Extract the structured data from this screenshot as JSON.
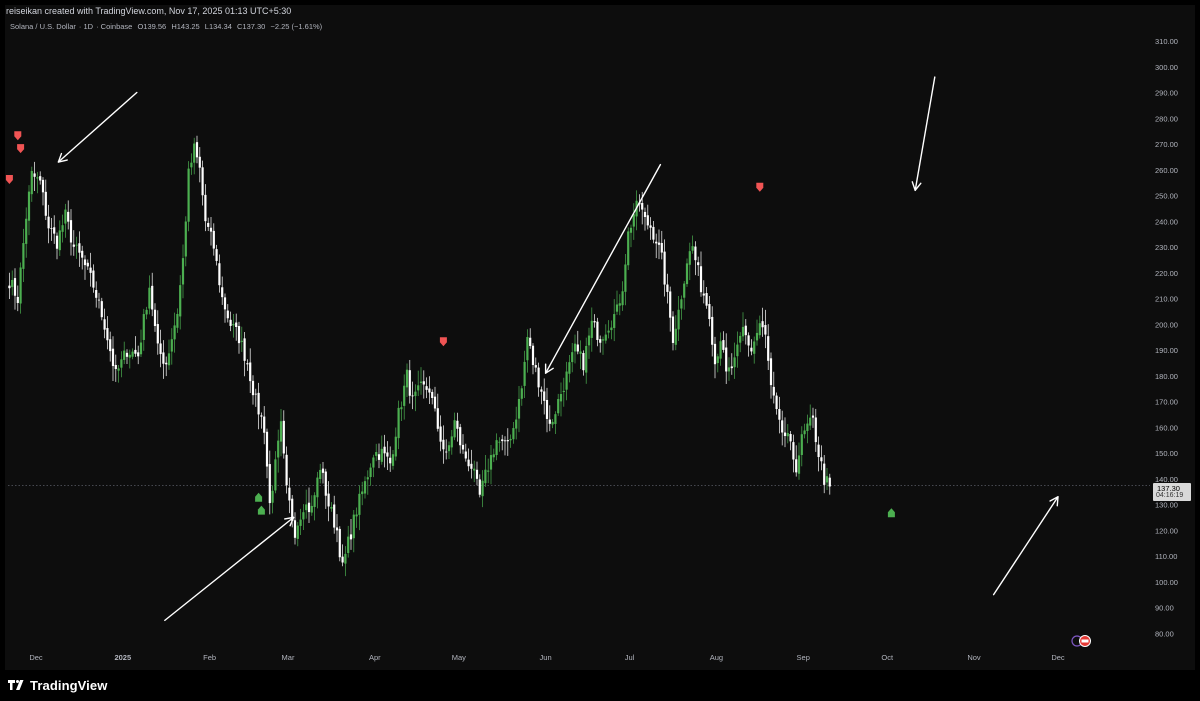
{
  "header": {
    "attribution": "reiseikan created with TradingView.com, Nov 17, 2025 01:13 UTC+5:30"
  },
  "symbol": {
    "name": "Solana / U.S. Dollar",
    "interval": "1D",
    "exchange": "Coinbase",
    "open": "O139.56",
    "high": "H143.25",
    "low": "L134.34",
    "close": "C137.30",
    "change": "−2.25 (−1.61%)"
  },
  "last_price": {
    "price": "137.30",
    "countdown": "04:16:19"
  },
  "footer": {
    "brand": "TradingView"
  },
  "colors": {
    "up": "#4caf50",
    "down": "#ffffff",
    "sell_marker": "#f05454",
    "buy_marker": "#4caf50",
    "background": "#0d0d0d",
    "axis_text": "#b2b5be"
  },
  "chart_data": {
    "type": "candlestick",
    "y_axis": {
      "min": 80,
      "max": 310,
      "ticks": [
        "310.00",
        "300.00",
        "290.00",
        "280.00",
        "270.00",
        "260.00",
        "250.00",
        "240.00",
        "230.00",
        "220.00",
        "210.00",
        "200.00",
        "190.00",
        "180.00",
        "170.00",
        "160.00",
        "150.00",
        "140.00",
        "130.00",
        "120.00",
        "110.00",
        "100.00",
        "90.00",
        "80.00"
      ]
    },
    "x_axis": {
      "ticks": [
        {
          "label": "Dec",
          "day": 10
        },
        {
          "label": "2025",
          "day": 41
        },
        {
          "label": "Feb",
          "day": 72
        },
        {
          "label": "Mar",
          "day": 100
        },
        {
          "label": "Apr",
          "day": 131
        },
        {
          "label": "May",
          "day": 161
        },
        {
          "label": "Jun",
          "day": 192
        },
        {
          "label": "Jul",
          "day": 222
        },
        {
          "label": "Aug",
          "day": 253
        },
        {
          "label": "Sep",
          "day": 284
        },
        {
          "label": "Oct",
          "day": 314
        },
        {
          "label": "Nov",
          "day": 345
        },
        {
          "label": "Dec",
          "day": 375
        }
      ]
    },
    "anchors": [
      {
        "d": 0,
        "p": 217
      },
      {
        "d": 3,
        "p": 210
      },
      {
        "d": 6,
        "p": 242
      },
      {
        "d": 8,
        "p": 258
      },
      {
        "d": 11,
        "p": 255
      },
      {
        "d": 14,
        "p": 238
      },
      {
        "d": 17,
        "p": 232
      },
      {
        "d": 20,
        "p": 242
      },
      {
        "d": 23,
        "p": 230
      },
      {
        "d": 26,
        "p": 225
      },
      {
        "d": 30,
        "p": 215
      },
      {
        "d": 34,
        "p": 200
      },
      {
        "d": 38,
        "p": 180
      },
      {
        "d": 42,
        "p": 190
      },
      {
        "d": 46,
        "p": 188
      },
      {
        "d": 50,
        "p": 215
      },
      {
        "d": 53,
        "p": 190
      },
      {
        "d": 56,
        "p": 185
      },
      {
        "d": 60,
        "p": 205
      },
      {
        "d": 62,
        "p": 225
      },
      {
        "d": 64,
        "p": 258
      },
      {
        "d": 66,
        "p": 268
      },
      {
        "d": 68,
        "p": 260
      },
      {
        "d": 70,
        "p": 240
      },
      {
        "d": 73,
        "p": 230
      },
      {
        "d": 76,
        "p": 210
      },
      {
        "d": 79,
        "p": 200
      },
      {
        "d": 82,
        "p": 195
      },
      {
        "d": 85,
        "p": 185
      },
      {
        "d": 88,
        "p": 170
      },
      {
        "d": 91,
        "p": 160
      },
      {
        "d": 93,
        "p": 130
      },
      {
        "d": 95,
        "p": 145
      },
      {
        "d": 97,
        "p": 160
      },
      {
        "d": 99,
        "p": 135
      },
      {
        "d": 102,
        "p": 120
      },
      {
        "d": 105,
        "p": 130
      },
      {
        "d": 108,
        "p": 128
      },
      {
        "d": 111,
        "p": 145
      },
      {
        "d": 114,
        "p": 130
      },
      {
        "d": 117,
        "p": 120
      },
      {
        "d": 119,
        "p": 105
      },
      {
        "d": 121,
        "p": 115
      },
      {
        "d": 124,
        "p": 128
      },
      {
        "d": 127,
        "p": 138
      },
      {
        "d": 130,
        "p": 150
      },
      {
        "d": 133,
        "p": 150
      },
      {
        "d": 136,
        "p": 146
      },
      {
        "d": 139,
        "p": 165
      },
      {
        "d": 142,
        "p": 180
      },
      {
        "d": 144,
        "p": 170
      },
      {
        "d": 147,
        "p": 175
      },
      {
        "d": 150,
        "p": 175
      },
      {
        "d": 153,
        "p": 160
      },
      {
        "d": 156,
        "p": 148
      },
      {
        "d": 159,
        "p": 162
      },
      {
        "d": 162,
        "p": 150
      },
      {
        "d": 165,
        "p": 145
      },
      {
        "d": 168,
        "p": 133
      },
      {
        "d": 171,
        "p": 145
      },
      {
        "d": 174,
        "p": 155
      },
      {
        "d": 177,
        "p": 152
      },
      {
        "d": 180,
        "p": 160
      },
      {
        "d": 183,
        "p": 175
      },
      {
        "d": 185,
        "p": 195
      },
      {
        "d": 187,
        "p": 185
      },
      {
        "d": 190,
        "p": 175
      },
      {
        "d": 193,
        "p": 160
      },
      {
        "d": 196,
        "p": 170
      },
      {
        "d": 199,
        "p": 180
      },
      {
        "d": 202,
        "p": 190
      },
      {
        "d": 205,
        "p": 185
      },
      {
        "d": 208,
        "p": 200
      },
      {
        "d": 211,
        "p": 195
      },
      {
        "d": 214,
        "p": 200
      },
      {
        "d": 217,
        "p": 205
      },
      {
        "d": 219,
        "p": 215
      },
      {
        "d": 221,
        "p": 235
      },
      {
        "d": 223,
        "p": 243
      },
      {
        "d": 225,
        "p": 247
      },
      {
        "d": 227,
        "p": 240
      },
      {
        "d": 229,
        "p": 238
      },
      {
        "d": 231,
        "p": 233
      },
      {
        "d": 233,
        "p": 225
      },
      {
        "d": 235,
        "p": 210
      },
      {
        "d": 237,
        "p": 195
      },
      {
        "d": 239,
        "p": 205
      },
      {
        "d": 242,
        "p": 225
      },
      {
        "d": 244,
        "p": 230
      },
      {
        "d": 247,
        "p": 215
      },
      {
        "d": 250,
        "p": 205
      },
      {
        "d": 252,
        "p": 185
      },
      {
        "d": 254,
        "p": 195
      },
      {
        "d": 256,
        "p": 180
      },
      {
        "d": 259,
        "p": 185
      },
      {
        "d": 262,
        "p": 198
      },
      {
        "d": 265,
        "p": 190
      },
      {
        "d": 268,
        "p": 200
      },
      {
        "d": 270,
        "p": 195
      },
      {
        "d": 272,
        "p": 175
      },
      {
        "d": 275,
        "p": 160
      },
      {
        "d": 278,
        "p": 155
      },
      {
        "d": 281,
        "p": 145
      },
      {
        "d": 283,
        "p": 155
      },
      {
        "d": 285,
        "p": 160
      },
      {
        "d": 287,
        "p": 162
      },
      {
        "d": 289,
        "p": 150
      },
      {
        "d": 291,
        "p": 140
      },
      {
        "d": 293,
        "p": 137
      }
    ],
    "price_markers": [
      {
        "type": "sell",
        "day": 0,
        "price": 256
      },
      {
        "type": "sell",
        "day": 3,
        "price": 273
      },
      {
        "type": "sell",
        "day": 4,
        "price": 268
      },
      {
        "type": "buy",
        "day": 89,
        "price": 133
      },
      {
        "type": "buy",
        "day": 90,
        "price": 128
      },
      {
        "type": "sell",
        "day": 155,
        "price": 193
      },
      {
        "type": "sell",
        "day": 268,
        "price": 253
      },
      {
        "type": "buy",
        "day": 315,
        "price": 127
      }
    ]
  }
}
